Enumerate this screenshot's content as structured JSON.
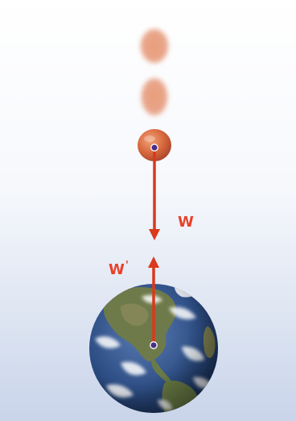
{
  "labels": {
    "w": "W",
    "w_prime": "W",
    "w_prime_mark": "'"
  },
  "icons": {
    "earth": "globe-earth-icon",
    "ball": "falling-ball-icon"
  },
  "colors": {
    "arrow": "#d9391d",
    "label": "#e8412a",
    "ball": "#d96a3e",
    "center_dot": "#4a2d88",
    "ocean": "#2e4f86",
    "land": "#6f7a4b"
  }
}
